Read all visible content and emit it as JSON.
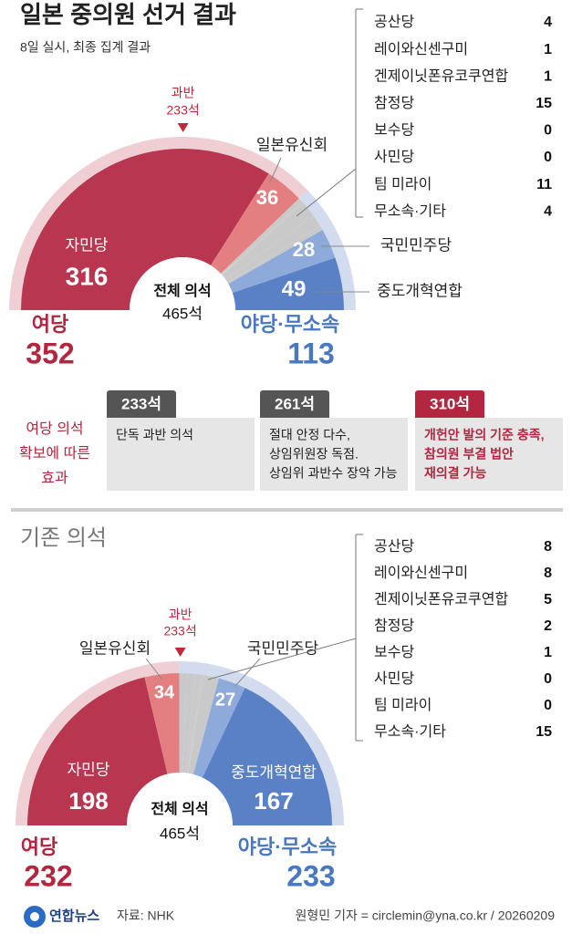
{
  "chart_data": [
    {
      "type": "half-donut",
      "title": "일본 중의원 선거 결과",
      "subtitle": "8일 실시, 최종 집계 결과",
      "center_title": "전체 의석",
      "center_label": "465석",
      "majority": 233,
      "majority_label": [
        "과반",
        "233석"
      ],
      "segments": [
        {
          "name": "자민당",
          "value": 316,
          "color": "#b8364f"
        },
        {
          "name": "일본유신회",
          "value": 36,
          "color": "#e37f80"
        },
        {
          "name": "국민민주당",
          "value": 28,
          "color": "#8eaadb"
        },
        {
          "name": "중도개혁연합",
          "value": 49,
          "color": "#5a80c6"
        }
      ],
      "others": {
        "color": "#c9c9c9",
        "categories": [
          "공산당",
          "레이와신센구미",
          "겐제이닛폰유코쿠연합",
          "참정당",
          "보수당",
          "사민당",
          "팀 미라이",
          "무소속·기타"
        ],
        "values": [
          4,
          1,
          1,
          15,
          0,
          0,
          11,
          4
        ]
      },
      "groups": [
        {
          "name": "여당",
          "value": 352,
          "color": "#efcfd3",
          "label_color": "#b3263f"
        },
        {
          "name": "야당·무소속",
          "value": 113,
          "color": "#d3dcef",
          "label_color": "#4a78c0"
        }
      ]
    },
    {
      "type": "half-donut",
      "title": "기존 의석",
      "center_title": "전체 의석",
      "center_label": "465석",
      "majority": 233,
      "majority_label": [
        "과반",
        "233석"
      ],
      "segments": [
        {
          "name": "자민당",
          "value": 198,
          "color": "#b8364f"
        },
        {
          "name": "일본유신회",
          "value": 34,
          "color": "#e37f80"
        },
        {
          "name": "국민민주당",
          "value": 27,
          "color": "#8eaadb"
        },
        {
          "name": "중도개혁연합",
          "value": 167,
          "color": "#5a80c6"
        }
      ],
      "others": {
        "color": "#c9c9c9",
        "categories": [
          "공산당",
          "레이와신센구미",
          "겐제이닛폰유코쿠연합",
          "참정당",
          "보수당",
          "사민당",
          "팀 미라이",
          "무소속·기타"
        ],
        "values": [
          8,
          8,
          5,
          2,
          1,
          0,
          0,
          15
        ]
      },
      "groups": [
        {
          "name": "여당",
          "value": 232,
          "color": "#efcfd3",
          "label_color": "#b3263f"
        },
        {
          "name": "야당·무소속",
          "value": 233,
          "color": "#d3dcef",
          "label_color": "#4a78c0"
        }
      ]
    }
  ],
  "effects": {
    "label": [
      "여당 의석",
      "확보에 따른",
      "효과"
    ],
    "label_color": "#b3263f",
    "items": [
      {
        "seats": "233석",
        "color": "#555555",
        "text_color": "#222222",
        "lines": [
          "단독 과반 의석"
        ]
      },
      {
        "seats": "261석",
        "color": "#555555",
        "text_color": "#222222",
        "lines": [
          "절대 안정 다수,",
          "상임위원장 독점.",
          "상임위 과반수 장악 가능"
        ]
      },
      {
        "seats": "310석",
        "color": "#b3263f",
        "text_color": "#b3263f",
        "lines": [
          "개헌안 발의 기준 충족,",
          "참의원 부결 법안",
          "재의결 가능"
        ]
      }
    ]
  },
  "footer": {
    "logo": "연합뉴스",
    "source": "자료: NHK",
    "credit": "원형민 기자 = circlemin@yna.co.kr / 20260209"
  }
}
